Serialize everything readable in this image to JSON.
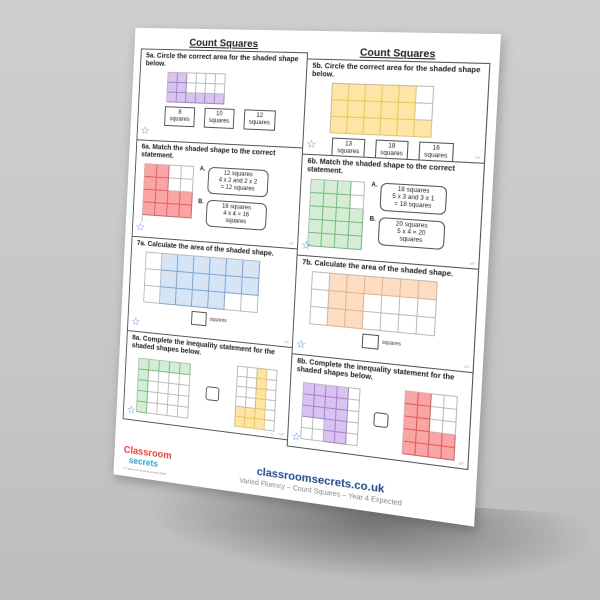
{
  "worksheet": {
    "titles": [
      "Count Squares",
      "Count Squares"
    ],
    "colors": {
      "purple": "#d8c4ef",
      "purple_border": "#a680d6",
      "yellow": "#fde5a8",
      "yellow_border": "#f2c552",
      "red": "#f7a5a5",
      "red_border": "#e85a5a",
      "green": "#d6ecd6",
      "green_border": "#6bc27a",
      "blue": "#d6e4f4",
      "blue_border": "#7aa6d8",
      "orange": "#fbdcc4",
      "orange_border": "#f2b07a",
      "star": "#3a7fd5"
    },
    "left": [
      {
        "id": "5a",
        "text": "5a. Circle the correct area for the shaded shape below.",
        "grid": {
          "cols": 6,
          "rows": 3,
          "color": "purple",
          "filled": [
            [
              1,
              1,
              0,
              0,
              0,
              0
            ],
            [
              1,
              1,
              0,
              0,
              0,
              0
            ],
            [
              1,
              1,
              1,
              1,
              1,
              1
            ]
          ]
        },
        "options": [
          {
            "num": "8",
            "unit": "squares"
          },
          {
            "num": "10",
            "unit": "squares"
          },
          {
            "num": "12",
            "unit": "squares"
          }
        ]
      },
      {
        "id": "6a",
        "text": "6a. Match the shaded shape to the correct statement.",
        "grid": {
          "cols": 4,
          "rows": 4,
          "color": "red",
          "filled": [
            [
              1,
              1,
              0,
              0
            ],
            [
              1,
              1,
              0,
              0
            ],
            [
              1,
              1,
              1,
              1
            ],
            [
              1,
              1,
              1,
              1
            ]
          ]
        },
        "statements": [
          {
            "letter": "A.",
            "lines": [
              "12 squares",
              "4 x 2 and 2 x 2",
              "= 12 squares"
            ]
          },
          {
            "letter": "B.",
            "lines": [
              "16 squares",
              "4 x 4 = 16",
              "squares"
            ]
          }
        ]
      },
      {
        "id": "7a",
        "text": "7a. Calculate the area of the shaded shape.",
        "grid": {
          "cols": 7,
          "rows": 3,
          "color": "blue",
          "filled": [
            [
              0,
              1,
              1,
              1,
              1,
              1,
              1
            ],
            [
              0,
              1,
              1,
              1,
              1,
              1,
              1
            ],
            [
              0,
              1,
              1,
              1,
              1,
              0,
              0
            ]
          ]
        },
        "answer_label": "squares"
      },
      {
        "id": "8a",
        "text": "8a. Complete the inequality statement for the shaded shapes below.",
        "grid_left": {
          "cols": 5,
          "rows": 5,
          "color": "green",
          "filled": [
            [
              1,
              1,
              1,
              1,
              1
            ],
            [
              1,
              0,
              0,
              0,
              0
            ],
            [
              1,
              0,
              0,
              0,
              0
            ],
            [
              1,
              0,
              0,
              0,
              0
            ],
            [
              1,
              0,
              0,
              0,
              0
            ]
          ]
        },
        "grid_right": {
          "cols": 4,
          "rows": 6,
          "color": "yellow",
          "filled": [
            [
              0,
              0,
              1,
              0
            ],
            [
              0,
              0,
              1,
              0
            ],
            [
              0,
              0,
              1,
              0
            ],
            [
              0,
              0,
              1,
              0
            ],
            [
              1,
              1,
              1,
              0
            ],
            [
              1,
              1,
              1,
              0
            ]
          ]
        }
      }
    ],
    "right": [
      {
        "id": "5b",
        "text": "5b. Circle the correct area for the shaded shape below.",
        "grid": {
          "cols": 6,
          "rows": 3,
          "color": "yellow",
          "filled": [
            [
              1,
              1,
              1,
              1,
              1,
              0
            ],
            [
              1,
              1,
              1,
              1,
              1,
              0
            ],
            [
              1,
              1,
              1,
              1,
              1,
              1
            ]
          ]
        },
        "options": [
          {
            "num": "13",
            "unit": "squares"
          },
          {
            "num": "18",
            "unit": "squares"
          },
          {
            "num": "16",
            "unit": "squares"
          }
        ]
      },
      {
        "id": "6b",
        "text": "6b. Match the shaded shape to the correct statement.",
        "grid": {
          "cols": 4,
          "rows": 5,
          "color": "green",
          "filled": [
            [
              1,
              1,
              1,
              0
            ],
            [
              1,
              1,
              1,
              0
            ],
            [
              1,
              1,
              1,
              1
            ],
            [
              1,
              1,
              1,
              1
            ],
            [
              1,
              1,
              1,
              1
            ]
          ]
        },
        "statements": [
          {
            "letter": "A.",
            "lines": [
              "18 squares",
              "5 x 3 and 3 x 1",
              "= 18 squares"
            ]
          },
          {
            "letter": "B.",
            "lines": [
              "20 squares",
              "5 x 4 = 20",
              "squares"
            ]
          }
        ]
      },
      {
        "id": "7b",
        "text": "7b. Calculate the area of the shaded shape.",
        "grid": {
          "cols": 7,
          "rows": 3,
          "color": "orange",
          "filled": [
            [
              0,
              1,
              1,
              1,
              1,
              1,
              1
            ],
            [
              0,
              1,
              1,
              0,
              0,
              0,
              0
            ],
            [
              0,
              1,
              1,
              0,
              0,
              0,
              0
            ]
          ]
        },
        "answer_label": "squares"
      },
      {
        "id": "8b",
        "text": "8b. Complete the inequality statement for the shaded shapes below.",
        "grid_left": {
          "cols": 5,
          "rows": 5,
          "color": "purple",
          "filled": [
            [
              1,
              1,
              1,
              1,
              0
            ],
            [
              1,
              1,
              1,
              1,
              0
            ],
            [
              1,
              1,
              1,
              1,
              0
            ],
            [
              0,
              0,
              1,
              1,
              0
            ],
            [
              0,
              0,
              1,
              1,
              0
            ]
          ]
        },
        "grid_right": {
          "cols": 4,
          "rows": 5,
          "color": "red",
          "filled": [
            [
              1,
              1,
              0,
              0
            ],
            [
              1,
              1,
              0,
              0
            ],
            [
              1,
              1,
              0,
              0
            ],
            [
              1,
              1,
              1,
              1
            ],
            [
              1,
              1,
              1,
              1
            ]
          ]
        }
      }
    ],
    "corner_mark": "VF",
    "footer": {
      "logo_top": "Classroom",
      "logo_bottom": "secrets",
      "copyright": "© Classroom Secrets Limited 2018",
      "site": "classroomsecrets.co.uk",
      "subtitle": "Varied Fluency – Count Squares – Year 4 Expected"
    }
  }
}
